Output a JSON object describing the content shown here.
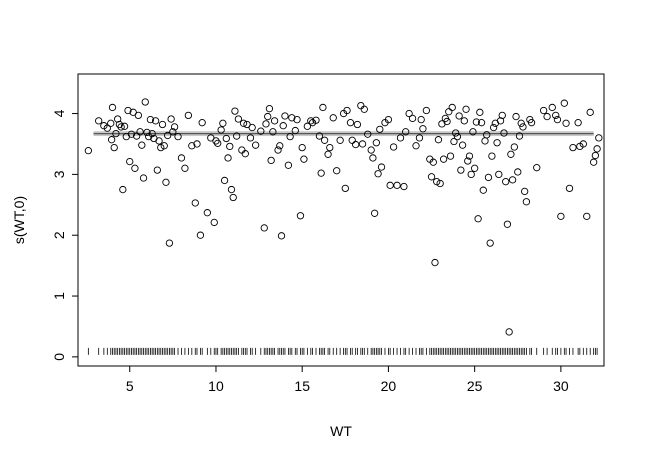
{
  "chart_data": {
    "type": "scatter",
    "xlabel": "WT",
    "ylabel": "s(WT,0)",
    "xlim": [
      2.0,
      32.5
    ],
    "ylim": [
      -0.15,
      4.65
    ],
    "x_ticks": [
      5,
      10,
      15,
      20,
      25,
      30
    ],
    "y_ticks": [
      0,
      1,
      2,
      3,
      4
    ],
    "x_tick_labels": [
      "5",
      "10",
      "15",
      "20",
      "25",
      "30"
    ],
    "y_tick_labels": [
      "0",
      "1",
      "2",
      "3",
      "4"
    ],
    "fitted_line": {
      "y": 3.67,
      "band": [
        3.63,
        3.71
      ]
    },
    "grid": false,
    "points": [
      [
        2.6,
        3.39
      ],
      [
        3.2,
        3.88
      ],
      [
        3.5,
        3.8
      ],
      [
        3.7,
        3.76
      ],
      [
        3.9,
        3.84
      ],
      [
        3.95,
        3.57
      ],
      [
        4.0,
        4.1
      ],
      [
        4.1,
        3.44
      ],
      [
        4.2,
        3.67
      ],
      [
        4.3,
        3.91
      ],
      [
        4.4,
        3.82
      ],
      [
        4.5,
        3.78
      ],
      [
        4.6,
        2.75
      ],
      [
        4.7,
        3.79
      ],
      [
        4.8,
        3.62
      ],
      [
        4.9,
        4.05
      ],
      [
        5.0,
        3.21
      ],
      [
        5.1,
        3.66
      ],
      [
        5.2,
        4.02
      ],
      [
        5.3,
        3.1
      ],
      [
        5.4,
        3.63
      ],
      [
        5.5,
        3.97
      ],
      [
        5.6,
        3.7
      ],
      [
        5.7,
        3.48
      ],
      [
        5.8,
        2.94
      ],
      [
        5.9,
        4.19
      ],
      [
        6.0,
        3.69
      ],
      [
        6.1,
        3.62
      ],
      [
        6.2,
        3.9
      ],
      [
        6.3,
        3.67
      ],
      [
        6.4,
        3.59
      ],
      [
        6.5,
        3.88
      ],
      [
        6.6,
        3.07
      ],
      [
        6.7,
        3.55
      ],
      [
        6.8,
        3.44
      ],
      [
        6.9,
        3.82
      ],
      [
        7.0,
        3.47
      ],
      [
        7.1,
        2.87
      ],
      [
        7.2,
        3.64
      ],
      [
        7.3,
        1.87
      ],
      [
        7.4,
        3.91
      ],
      [
        7.5,
        3.7
      ],
      [
        7.6,
        3.78
      ],
      [
        7.8,
        3.62
      ],
      [
        8.0,
        3.27
      ],
      [
        8.2,
        3.1
      ],
      [
        8.4,
        3.97
      ],
      [
        8.6,
        3.47
      ],
      [
        8.8,
        2.53
      ],
      [
        8.9,
        3.5
      ],
      [
        9.1,
        2.0
      ],
      [
        9.2,
        3.85
      ],
      [
        9.5,
        2.37
      ],
      [
        9.7,
        3.6
      ],
      [
        9.9,
        2.21
      ],
      [
        10.0,
        3.55
      ],
      [
        10.1,
        3.51
      ],
      [
        10.3,
        3.73
      ],
      [
        10.4,
        3.84
      ],
      [
        10.5,
        2.9
      ],
      [
        10.6,
        3.59
      ],
      [
        10.7,
        3.27
      ],
      [
        10.8,
        3.46
      ],
      [
        10.9,
        2.75
      ],
      [
        11.0,
        2.62
      ],
      [
        11.1,
        4.04
      ],
      [
        11.2,
        3.63
      ],
      [
        11.3,
        3.91
      ],
      [
        11.5,
        3.4
      ],
      [
        11.6,
        3.84
      ],
      [
        11.7,
        3.34
      ],
      [
        11.8,
        3.82
      ],
      [
        12.0,
        3.6
      ],
      [
        12.1,
        3.77
      ],
      [
        12.3,
        3.48
      ],
      [
        12.6,
        3.71
      ],
      [
        12.8,
        2.12
      ],
      [
        12.9,
        3.83
      ],
      [
        13.0,
        3.95
      ],
      [
        13.1,
        4.08
      ],
      [
        13.2,
        3.23
      ],
      [
        13.3,
        3.7
      ],
      [
        13.4,
        3.88
      ],
      [
        13.6,
        3.4
      ],
      [
        13.7,
        3.47
      ],
      [
        13.8,
        1.99
      ],
      [
        13.9,
        3.8
      ],
      [
        14.0,
        3.96
      ],
      [
        14.2,
        3.15
      ],
      [
        14.3,
        3.62
      ],
      [
        14.4,
        3.93
      ],
      [
        14.6,
        3.72
      ],
      [
        14.7,
        3.9
      ],
      [
        14.9,
        2.32
      ],
      [
        15.0,
        3.44
      ],
      [
        15.1,
        3.25
      ],
      [
        15.3,
        3.79
      ],
      [
        15.5,
        3.88
      ],
      [
        15.6,
        3.85
      ],
      [
        15.8,
        3.89
      ],
      [
        16.0,
        3.63
      ],
      [
        16.1,
        3.02
      ],
      [
        16.2,
        4.1
      ],
      [
        16.3,
        3.56
      ],
      [
        16.5,
        3.33
      ],
      [
        16.6,
        3.44
      ],
      [
        16.8,
        3.93
      ],
      [
        17.0,
        3.06
      ],
      [
        17.2,
        3.56
      ],
      [
        17.4,
        4.0
      ],
      [
        17.5,
        2.77
      ],
      [
        17.6,
        4.05
      ],
      [
        17.8,
        3.85
      ],
      [
        17.9,
        3.56
      ],
      [
        18.1,
        3.49
      ],
      [
        18.2,
        3.82
      ],
      [
        18.4,
        4.13
      ],
      [
        18.5,
        3.5
      ],
      [
        18.6,
        4.07
      ],
      [
        18.8,
        3.66
      ],
      [
        19.0,
        3.4
      ],
      [
        19.1,
        3.27
      ],
      [
        19.2,
        2.36
      ],
      [
        19.3,
        3.52
      ],
      [
        19.4,
        3.01
      ],
      [
        19.5,
        3.74
      ],
      [
        19.6,
        3.12
      ],
      [
        19.8,
        3.85
      ],
      [
        20.0,
        3.9
      ],
      [
        20.1,
        2.82
      ],
      [
        20.3,
        3.45
      ],
      [
        20.5,
        2.82
      ],
      [
        20.7,
        3.6
      ],
      [
        20.9,
        2.8
      ],
      [
        21.0,
        3.7
      ],
      [
        21.2,
        4.0
      ],
      [
        21.4,
        3.92
      ],
      [
        21.6,
        3.47
      ],
      [
        21.8,
        3.6
      ],
      [
        21.9,
        3.9
      ],
      [
        22.0,
        3.75
      ],
      [
        22.2,
        4.05
      ],
      [
        22.4,
        3.25
      ],
      [
        22.5,
        2.96
      ],
      [
        22.6,
        3.2
      ],
      [
        22.7,
        1.55
      ],
      [
        22.8,
        2.88
      ],
      [
        22.9,
        3.57
      ],
      [
        23.0,
        2.85
      ],
      [
        23.1,
        3.83
      ],
      [
        23.2,
        3.25
      ],
      [
        23.3,
        3.92
      ],
      [
        23.4,
        3.87
      ],
      [
        23.5,
        4.03
      ],
      [
        23.6,
        3.3
      ],
      [
        23.7,
        4.1
      ],
      [
        23.8,
        3.54
      ],
      [
        23.9,
        3.68
      ],
      [
        24.0,
        3.62
      ],
      [
        24.1,
        3.96
      ],
      [
        24.2,
        3.07
      ],
      [
        24.3,
        3.48
      ],
      [
        24.4,
        3.88
      ],
      [
        24.5,
        4.07
      ],
      [
        24.6,
        3.22
      ],
      [
        24.7,
        3.3
      ],
      [
        24.8,
        3.0
      ],
      [
        24.9,
        3.7
      ],
      [
        25.0,
        3.1
      ],
      [
        25.1,
        3.86
      ],
      [
        25.2,
        2.27
      ],
      [
        25.3,
        4.02
      ],
      [
        25.4,
        3.85
      ],
      [
        25.5,
        2.74
      ],
      [
        25.6,
        3.55
      ],
      [
        25.7,
        3.65
      ],
      [
        25.8,
        2.95
      ],
      [
        25.9,
        1.87
      ],
      [
        26.0,
        3.3
      ],
      [
        26.1,
        3.77
      ],
      [
        26.2,
        3.84
      ],
      [
        26.3,
        3.52
      ],
      [
        26.4,
        3.0
      ],
      [
        26.5,
        3.88
      ],
      [
        26.6,
        3.97
      ],
      [
        26.7,
        3.68
      ],
      [
        26.8,
        2.88
      ],
      [
        26.9,
        2.18
      ],
      [
        27.0,
        0.41
      ],
      [
        27.1,
        3.33
      ],
      [
        27.2,
        2.91
      ],
      [
        27.3,
        3.45
      ],
      [
        27.4,
        3.95
      ],
      [
        27.5,
        3.04
      ],
      [
        27.6,
        3.63
      ],
      [
        27.7,
        3.84
      ],
      [
        27.8,
        3.78
      ],
      [
        27.9,
        2.72
      ],
      [
        28.0,
        2.55
      ],
      [
        28.2,
        3.9
      ],
      [
        28.3,
        3.85
      ],
      [
        28.6,
        3.11
      ],
      [
        29.0,
        4.05
      ],
      [
        29.2,
        3.95
      ],
      [
        29.5,
        4.1
      ],
      [
        29.7,
        3.97
      ],
      [
        29.8,
        3.9
      ],
      [
        30.0,
        2.31
      ],
      [
        30.2,
        4.17
      ],
      [
        30.3,
        3.84
      ],
      [
        30.5,
        2.77
      ],
      [
        30.7,
        3.44
      ],
      [
        31.0,
        3.85
      ],
      [
        31.1,
        3.46
      ],
      [
        31.3,
        3.5
      ],
      [
        31.5,
        2.31
      ],
      [
        31.7,
        4.02
      ],
      [
        31.9,
        3.2
      ],
      [
        32.0,
        3.31
      ],
      [
        32.1,
        3.42
      ],
      [
        32.2,
        3.6
      ]
    ],
    "rug": [
      2.6,
      3.2,
      3.5,
      3.7,
      3.9,
      4.0,
      4.1,
      4.2,
      4.3,
      4.4,
      4.5,
      4.6,
      4.7,
      4.8,
      4.9,
      5.0,
      5.1,
      5.2,
      5.3,
      5.4,
      5.5,
      5.6,
      5.7,
      5.8,
      5.9,
      6.0,
      6.1,
      6.2,
      6.3,
      6.4,
      6.5,
      6.6,
      6.7,
      6.8,
      6.9,
      7.0,
      7.1,
      7.2,
      7.3,
      7.4,
      7.5,
      7.6,
      7.8,
      8.0,
      8.2,
      8.4,
      8.6,
      8.8,
      8.9,
      9.1,
      9.2,
      9.5,
      9.7,
      9.9,
      10.0,
      10.1,
      10.3,
      10.4,
      10.5,
      10.6,
      10.7,
      10.8,
      10.9,
      11.0,
      11.1,
      11.2,
      11.3,
      11.5,
      11.6,
      11.7,
      11.8,
      12.0,
      12.1,
      12.3,
      12.6,
      12.8,
      12.9,
      13.0,
      13.1,
      13.2,
      13.3,
      13.4,
      13.6,
      13.7,
      13.8,
      13.9,
      14.0,
      14.2,
      14.3,
      14.4,
      14.6,
      14.7,
      14.9,
      15.0,
      15.1,
      15.3,
      15.5,
      15.6,
      15.8,
      16.0,
      16.1,
      16.2,
      16.3,
      16.5,
      16.6,
      16.8,
      17.0,
      17.2,
      17.4,
      17.5,
      17.6,
      17.8,
      17.9,
      18.1,
      18.2,
      18.4,
      18.5,
      18.6,
      18.8,
      19.0,
      19.1,
      19.2,
      19.3,
      19.4,
      19.5,
      19.6,
      19.8,
      20.0,
      20.1,
      20.3,
      20.5,
      20.7,
      20.9,
      21.0,
      21.2,
      21.4,
      21.6,
      21.8,
      21.9,
      22.0,
      22.2,
      22.4,
      22.5,
      22.6,
      22.7,
      22.8,
      22.9,
      23.0,
      23.1,
      23.2,
      23.3,
      23.4,
      23.5,
      23.6,
      23.7,
      23.8,
      23.9,
      24.0,
      24.1,
      24.2,
      24.3,
      24.4,
      24.5,
      24.6,
      24.7,
      24.8,
      24.9,
      25.0,
      25.1,
      25.2,
      25.3,
      25.4,
      25.5,
      25.6,
      25.7,
      25.8,
      25.9,
      26.0,
      26.1,
      26.2,
      26.3,
      26.4,
      26.5,
      26.6,
      26.7,
      26.8,
      26.9,
      27.0,
      27.1,
      27.2,
      27.3,
      27.4,
      27.5,
      27.6,
      27.7,
      27.8,
      27.9,
      28.0,
      28.2,
      28.3,
      28.6,
      29.0,
      29.2,
      29.5,
      29.7,
      29.8,
      30.0,
      30.2,
      30.3,
      30.5,
      30.7,
      31.0,
      31.1,
      31.3,
      31.5,
      31.7,
      31.9,
      32.0,
      32.1
    ],
    "colors": {
      "points": "#000000",
      "line": "#555555",
      "band": "#c8c8c8",
      "axes": "#000000"
    }
  }
}
